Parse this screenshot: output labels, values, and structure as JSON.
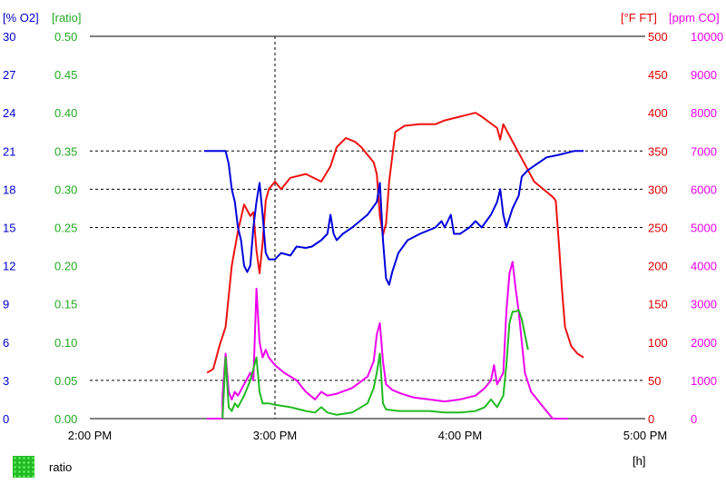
{
  "chart_data": {
    "type": "line",
    "xlabel": "[h]",
    "x_ticks": [
      "2:00 PM",
      "3:00 PM",
      "4:00 PM",
      "5:00 PM"
    ],
    "x_range": [
      "2:00 PM",
      "5:00 PM"
    ],
    "grid": "dashed horizontal lines at 350, 300, 250 and 50 °F FT; dashed vertical line at 3:00 PM",
    "axes": {
      "o2": {
        "label": "[% O2]",
        "color": "#0000cc",
        "side": "left",
        "range": [
          0,
          30
        ],
        "ticks": [
          "30",
          "27",
          "24",
          "21",
          "18",
          "15",
          "12",
          "9",
          "6",
          "3",
          "0"
        ]
      },
      "ratio": {
        "label": "[ratio]",
        "color": "#22aa22",
        "side": "left",
        "range": [
          0,
          0.5
        ],
        "ticks": [
          "0.50",
          "0.45",
          "0.40",
          "0.35",
          "0.30",
          "0.25",
          "0.20",
          "0.15",
          "0.10",
          "0.05",
          "0.00"
        ]
      },
      "temp": {
        "label": "[°F FT]",
        "color": "#dd0000",
        "side": "right",
        "range": [
          0,
          500
        ],
        "ticks": [
          "500",
          "450",
          "400",
          "350",
          "300",
          "250",
          "200",
          "150",
          "100",
          "50",
          "0"
        ]
      },
      "co": {
        "label": "[ppm CO]",
        "color": "#ee00ee",
        "side": "right",
        "range": [
          0,
          10000
        ],
        "ticks": [
          "10000",
          "9000",
          "8000",
          "7000",
          "6000",
          "5000",
          "4000",
          "3000",
          "2000",
          "1000",
          "0"
        ]
      }
    },
    "series": [
      {
        "axis": "temp",
        "color": "#ee1111",
        "points": [
          [
            "2:38 PM",
            60
          ],
          [
            "2:40 PM",
            65
          ],
          [
            "2:42 PM",
            95
          ],
          [
            "2:44 PM",
            120
          ],
          [
            "2:46 PM",
            200
          ],
          [
            "2:48 PM",
            245
          ],
          [
            "2:50 PM",
            280
          ],
          [
            "2:52 PM",
            265
          ],
          [
            "2:53 PM",
            270
          ],
          [
            "2:54 PM",
            220
          ],
          [
            "2:55 PM",
            190
          ],
          [
            "2:56 PM",
            230
          ],
          [
            "2:57 PM",
            285
          ],
          [
            "2:58 PM",
            300
          ],
          [
            "3:00 PM",
            310
          ],
          [
            "3:02 PM",
            300
          ],
          [
            "3:05 PM",
            315
          ],
          [
            "3:10 PM",
            320
          ],
          [
            "3:15 PM",
            310
          ],
          [
            "3:18 PM",
            330
          ],
          [
            "3:20 PM",
            355
          ],
          [
            "3:23 PM",
            367
          ],
          [
            "3:26 PM",
            362
          ],
          [
            "3:28 PM",
            355
          ],
          [
            "3:32 PM",
            335
          ],
          [
            "3:33 PM",
            320
          ],
          [
            "3:34 PM",
            265
          ],
          [
            "3:35 PM",
            240
          ],
          [
            "3:36 PM",
            255
          ],
          [
            "3:37 PM",
            310
          ],
          [
            "3:39 PM",
            375
          ],
          [
            "3:42 PM",
            383
          ],
          [
            "3:47 PM",
            385
          ],
          [
            "3:52 PM",
            385
          ],
          [
            "3:55 PM",
            390
          ],
          [
            "4:00 PM",
            395
          ],
          [
            "4:05 PM",
            400
          ],
          [
            "4:07 PM",
            395
          ],
          [
            "4:12 PM",
            380
          ],
          [
            "4:13 PM",
            365
          ],
          [
            "4:14 PM",
            385
          ],
          [
            "4:16 PM",
            370
          ],
          [
            "4:18 PM",
            355
          ],
          [
            "4:20 PM",
            340
          ],
          [
            "4:22 PM",
            325
          ],
          [
            "4:24 PM",
            310
          ],
          [
            "4:27 PM",
            300
          ],
          [
            "4:30 PM",
            290
          ],
          [
            "4:31 PM",
            285
          ],
          [
            "4:32 PM",
            230
          ],
          [
            "4:33 PM",
            170
          ],
          [
            "4:34 PM",
            120
          ],
          [
            "4:36 PM",
            95
          ],
          [
            "4:38 PM",
            85
          ],
          [
            "4:40 PM",
            80
          ]
        ]
      },
      {
        "axis": "o2",
        "color": "#0000dd",
        "points": [
          [
            "2:37 PM",
            21
          ],
          [
            "2:42 PM",
            21
          ],
          [
            "2:44 PM",
            21
          ],
          [
            "2:45 PM",
            20
          ],
          [
            "2:46 PM",
            18
          ],
          [
            "2:47 PM",
            17
          ],
          [
            "2:48 PM",
            15
          ],
          [
            "2:49 PM",
            14
          ],
          [
            "2:50 PM",
            12
          ],
          [
            "2:51 PM",
            11.5
          ],
          [
            "2:52 PM",
            12
          ],
          [
            "2:53 PM",
            15
          ],
          [
            "2:54 PM",
            17
          ],
          [
            "2:55 PM",
            18.5
          ],
          [
            "2:56 PM",
            16
          ],
          [
            "2:57 PM",
            13
          ],
          [
            "2:58 PM",
            12.5
          ],
          [
            "3:00 PM",
            12.5
          ],
          [
            "3:02 PM",
            13
          ],
          [
            "3:05 PM",
            12.8
          ],
          [
            "3:07 PM",
            13.5
          ],
          [
            "3:10 PM",
            13.4
          ],
          [
            "3:12 PM",
            13.5
          ],
          [
            "3:15 PM",
            14
          ],
          [
            "3:17 PM",
            14.5
          ],
          [
            "3:18 PM",
            16
          ],
          [
            "3:19 PM",
            14.5
          ],
          [
            "3:20 PM",
            14
          ],
          [
            "3:22 PM",
            14.5
          ],
          [
            "3:25 PM",
            15
          ],
          [
            "3:30 PM",
            16
          ],
          [
            "3:33 PM",
            17
          ],
          [
            "3:34 PM",
            18.5
          ],
          [
            "3:35 PM",
            14
          ],
          [
            "3:36 PM",
            11
          ],
          [
            "3:37 PM",
            10.5
          ],
          [
            "3:38 PM",
            11.5
          ],
          [
            "3:40 PM",
            13
          ],
          [
            "3:43 PM",
            14
          ],
          [
            "3:47 PM",
            14.5
          ],
          [
            "3:52 PM",
            15
          ],
          [
            "3:54 PM",
            15.5
          ],
          [
            "3:55 PM",
            15
          ],
          [
            "3:57 PM",
            16
          ],
          [
            "3:58 PM",
            14.5
          ],
          [
            "4:00 PM",
            14.5
          ],
          [
            "4:03 PM",
            15
          ],
          [
            "4:05 PM",
            15.5
          ],
          [
            "4:07 PM",
            15
          ],
          [
            "4:10 PM",
            16
          ],
          [
            "4:12 PM",
            17
          ],
          [
            "4:13 PM",
            18
          ],
          [
            "4:14 PM",
            16
          ],
          [
            "4:15 PM",
            15
          ],
          [
            "4:17 PM",
            16.5
          ],
          [
            "4:19 PM",
            17.5
          ],
          [
            "4:20 PM",
            19
          ],
          [
            "4:22 PM",
            19.5
          ],
          [
            "4:25 PM",
            20
          ],
          [
            "4:28 PM",
            20.5
          ],
          [
            "4:32 PM",
            20.7
          ],
          [
            "4:37 PM",
            21
          ],
          [
            "4:40 PM",
            21
          ]
        ]
      },
      {
        "axis": "co",
        "color": "#ee00ee",
        "points": [
          [
            "2:38 PM",
            0
          ],
          [
            "2:43 PM",
            0
          ],
          [
            "2:43 PM",
            600
          ],
          [
            "2:44 PM",
            1700
          ],
          [
            "2:45 PM",
            700
          ],
          [
            "2:46 PM",
            500
          ],
          [
            "2:47 PM",
            700
          ],
          [
            "2:48 PM",
            600
          ],
          [
            "2:50 PM",
            900
          ],
          [
            "2:52 PM",
            1200
          ],
          [
            "2:53 PM",
            1000
          ],
          [
            "2:54 PM",
            3400
          ],
          [
            "2:55 PM",
            2000
          ],
          [
            "2:56 PM",
            1600
          ],
          [
            "2:57 PM",
            1800
          ],
          [
            "2:58 PM",
            1600
          ],
          [
            "3:00 PM",
            1400
          ],
          [
            "3:03 PM",
            1200
          ],
          [
            "3:07 PM",
            1000
          ],
          [
            "3:10 PM",
            700
          ],
          [
            "3:13 PM",
            500
          ],
          [
            "3:15 PM",
            700
          ],
          [
            "3:17 PM",
            600
          ],
          [
            "3:20 PM",
            650
          ],
          [
            "3:25 PM",
            800
          ],
          [
            "3:30 PM",
            1100
          ],
          [
            "3:32 PM",
            1500
          ],
          [
            "3:33 PM",
            2200
          ],
          [
            "3:34 PM",
            2500
          ],
          [
            "3:35 PM",
            1500
          ],
          [
            "3:36 PM",
            900
          ],
          [
            "3:38 PM",
            750
          ],
          [
            "3:41 PM",
            650
          ],
          [
            "3:45 PM",
            550
          ],
          [
            "3:50 PM",
            500
          ],
          [
            "3:55 PM",
            450
          ],
          [
            "4:00 PM",
            500
          ],
          [
            "4:05 PM",
            600
          ],
          [
            "4:08 PM",
            800
          ],
          [
            "4:10 PM",
            1000
          ],
          [
            "4:11 PM",
            1400
          ],
          [
            "4:12 PM",
            900
          ],
          [
            "4:14 PM",
            1200
          ],
          [
            "4:15 PM",
            2800
          ],
          [
            "4:16 PM",
            3800
          ],
          [
            "4:17 PM",
            4100
          ],
          [
            "4:18 PM",
            3400
          ],
          [
            "4:19 PM",
            2800
          ],
          [
            "4:20 PM",
            2000
          ],
          [
            "4:21 PM",
            1200
          ],
          [
            "4:23 PM",
            700
          ],
          [
            "4:26 PM",
            400
          ],
          [
            "4:28 PM",
            200
          ],
          [
            "4:30 PM",
            0
          ],
          [
            "4:35 PM",
            0
          ]
        ]
      },
      {
        "axis": "ratio",
        "name": "ratio",
        "color": "#22bb22",
        "points": [
          [
            "2:43 PM",
            0
          ],
          [
            "2:44 PM",
            0.08
          ],
          [
            "2:45 PM",
            0.015
          ],
          [
            "2:46 PM",
            0.01
          ],
          [
            "2:47 PM",
            0.02
          ],
          [
            "2:48 PM",
            0.015
          ],
          [
            "2:50 PM",
            0.03
          ],
          [
            "2:52 PM",
            0.05
          ],
          [
            "2:53 PM",
            0.065
          ],
          [
            "2:54 PM",
            0.08
          ],
          [
            "2:55 PM",
            0.035
          ],
          [
            "2:56 PM",
            0.02
          ],
          [
            "2:58 PM",
            0.02
          ],
          [
            "3:00 PM",
            0.018
          ],
          [
            "3:05 PM",
            0.015
          ],
          [
            "3:10 PM",
            0.01
          ],
          [
            "3:13 PM",
            0.008
          ],
          [
            "3:15 PM",
            0.015
          ],
          [
            "3:17 PM",
            0.008
          ],
          [
            "3:20 PM",
            0.005
          ],
          [
            "3:25 PM",
            0.008
          ],
          [
            "3:30 PM",
            0.02
          ],
          [
            "3:32 PM",
            0.04
          ],
          [
            "3:33 PM",
            0.06
          ],
          [
            "3:34 PM",
            0.085
          ],
          [
            "3:35 PM",
            0.02
          ],
          [
            "3:36 PM",
            0.012
          ],
          [
            "3:40 PM",
            0.01
          ],
          [
            "3:45 PM",
            0.01
          ],
          [
            "3:50 PM",
            0.01
          ],
          [
            "3:55 PM",
            0.008
          ],
          [
            "4:00 PM",
            0.008
          ],
          [
            "4:05 PM",
            0.01
          ],
          [
            "4:08 PM",
            0.015
          ],
          [
            "4:10 PM",
            0.025
          ],
          [
            "4:12 PM",
            0.015
          ],
          [
            "4:14 PM",
            0.03
          ],
          [
            "4:15 PM",
            0.07
          ],
          [
            "4:16 PM",
            0.125
          ],
          [
            "4:17 PM",
            0.14
          ],
          [
            "4:18 PM",
            0.14
          ],
          [
            "4:19 PM",
            0.142
          ],
          [
            "4:20 PM",
            0.13
          ],
          [
            "4:21 PM",
            0.11
          ],
          [
            "4:22 PM",
            0.09
          ]
        ]
      }
    ],
    "legend": {
      "position": "bottom-left",
      "label": "ratio",
      "color": "#22bb22"
    }
  }
}
